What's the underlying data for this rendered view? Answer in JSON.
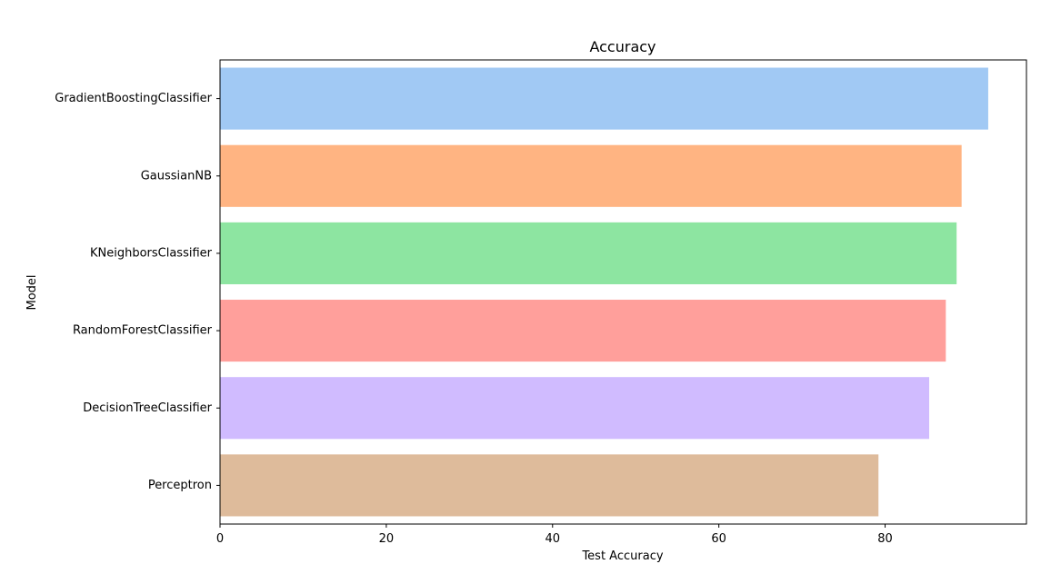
{
  "chart_data": {
    "type": "bar",
    "orientation": "horizontal",
    "title": "Accuracy",
    "xlabel": "Test Accuracy",
    "ylabel": "Model",
    "categories": [
      "GradientBoostingClassifier",
      "GaussianNB",
      "KNeighborsClassifier",
      "RandomForestClassifier",
      "DecisionTreeClassifier",
      "Perceptron"
    ],
    "values": [
      92.4,
      89.2,
      88.6,
      87.3,
      85.3,
      79.2
    ],
    "colors": [
      "#a1c9f4",
      "#ffb482",
      "#8de5a1",
      "#ff9f9b",
      "#d0bbff",
      "#debb9b"
    ],
    "xlim": [
      0,
      97
    ],
    "xticks": [
      0,
      20,
      40,
      60,
      80
    ],
    "grid": false,
    "legend": "none"
  }
}
